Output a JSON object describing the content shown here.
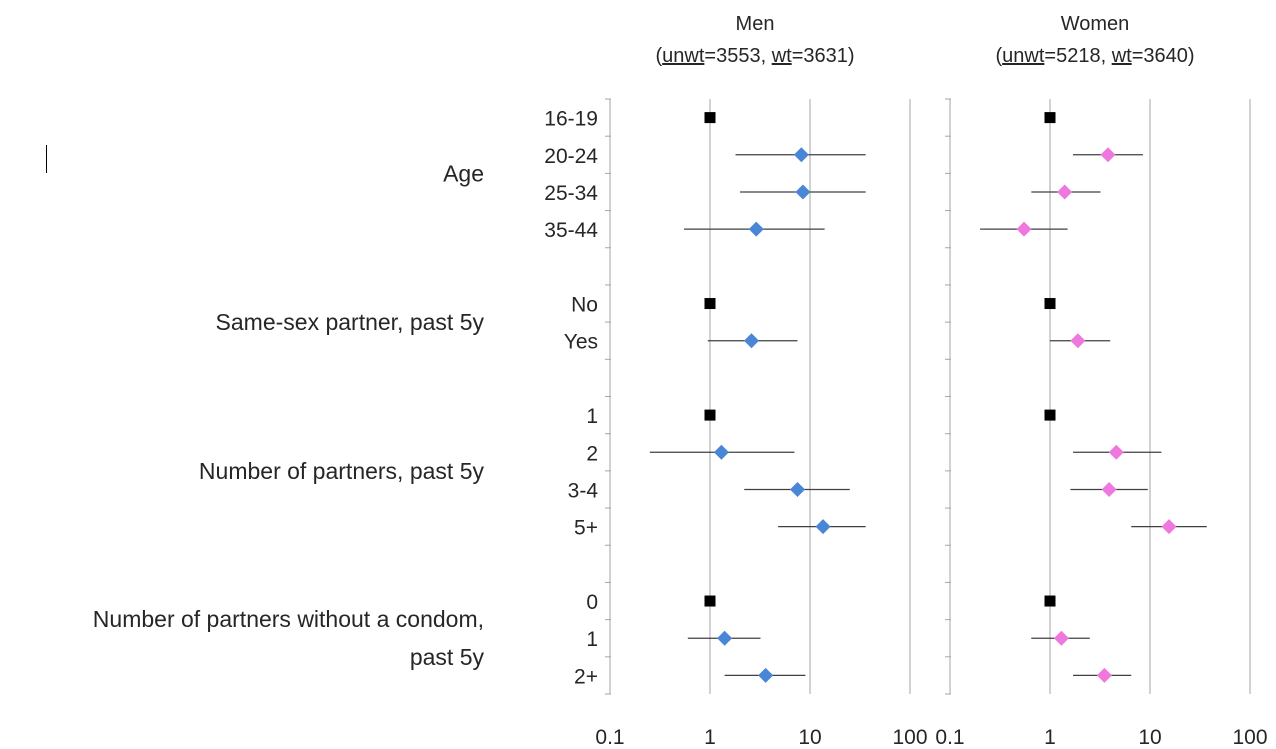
{
  "chart_data": {
    "type": "forest",
    "x_scale": "log",
    "xlim": [
      0.1,
      100
    ],
    "x_ticks": [
      "0.1",
      "1",
      "10",
      "100"
    ],
    "grid": "vertical at 1, 10, 100",
    "reference_marker": "black square at 1",
    "panels": [
      {
        "title": "Men",
        "subtitle_parts": [
          "(",
          "unwt",
          "=3553, ",
          "wt",
          "=3631)"
        ],
        "color": "#4a86d6"
      },
      {
        "title": "Women",
        "subtitle_parts": [
          "(",
          "unwt",
          "=5218, ",
          "wt",
          "=3640)"
        ],
        "color": "#ee78dd"
      }
    ],
    "groups": [
      {
        "label_lines": [
          "Age"
        ]
      },
      {
        "label_lines": [
          "Same-sex partner, past 5y"
        ]
      },
      {
        "label_lines": [
          "Number of partners, past 5y"
        ]
      },
      {
        "label_lines": [
          "Number of partners without a condom,",
          "past 5y"
        ]
      }
    ],
    "rows": [
      {
        "label": "16-19",
        "group": 0,
        "reference": true,
        "men": [
          1,
          null,
          null
        ],
        "women": [
          1,
          null,
          null
        ]
      },
      {
        "label": "20-24",
        "group": 0,
        "reference": false,
        "men": [
          8.2,
          1.8,
          36
        ],
        "women": [
          3.8,
          1.7,
          8.5
        ]
      },
      {
        "label": "25-34",
        "group": 0,
        "reference": false,
        "men": [
          8.5,
          2.0,
          36
        ],
        "women": [
          1.4,
          0.65,
          3.2
        ]
      },
      {
        "label": "35-44",
        "group": 0,
        "reference": false,
        "men": [
          2.9,
          0.55,
          14
        ],
        "women": [
          0.55,
          0.2,
          1.5
        ]
      },
      {
        "label": "",
        "group": -1,
        "spacer": true
      },
      {
        "label": "No",
        "group": 1,
        "reference": true,
        "men": [
          1,
          null,
          null
        ],
        "women": [
          1,
          null,
          null
        ]
      },
      {
        "label": "Yes",
        "group": 1,
        "reference": false,
        "men": [
          2.6,
          0.95,
          7.5
        ],
        "women": [
          1.9,
          1.0,
          4.0
        ]
      },
      {
        "label": "",
        "group": -1,
        "spacer": true
      },
      {
        "label": "1",
        "group": 2,
        "reference": true,
        "men": [
          1,
          null,
          null
        ],
        "women": [
          1,
          null,
          null
        ]
      },
      {
        "label": "2",
        "group": 2,
        "reference": false,
        "men": [
          1.3,
          0.25,
          7.0
        ],
        "women": [
          4.6,
          1.7,
          13
        ]
      },
      {
        "label": "3-4",
        "group": 2,
        "reference": false,
        "men": [
          7.5,
          2.2,
          25
        ],
        "women": [
          3.9,
          1.6,
          9.5
        ]
      },
      {
        "label": "5+",
        "group": 2,
        "reference": false,
        "men": [
          13.5,
          4.8,
          36
        ],
        "women": [
          15.5,
          6.5,
          37
        ]
      },
      {
        "label": "",
        "group": -1,
        "spacer": true
      },
      {
        "label": "0",
        "group": 3,
        "reference": true,
        "men": [
          1,
          null,
          null
        ],
        "women": [
          1,
          null,
          null
        ]
      },
      {
        "label": "1",
        "group": 3,
        "reference": false,
        "men": [
          1.4,
          0.6,
          3.2
        ],
        "women": [
          1.3,
          0.65,
          2.5
        ]
      },
      {
        "label": "2+",
        "group": 3,
        "reference": false,
        "men": [
          3.6,
          1.4,
          9.0
        ],
        "women": [
          3.5,
          1.7,
          6.5
        ]
      }
    ]
  }
}
